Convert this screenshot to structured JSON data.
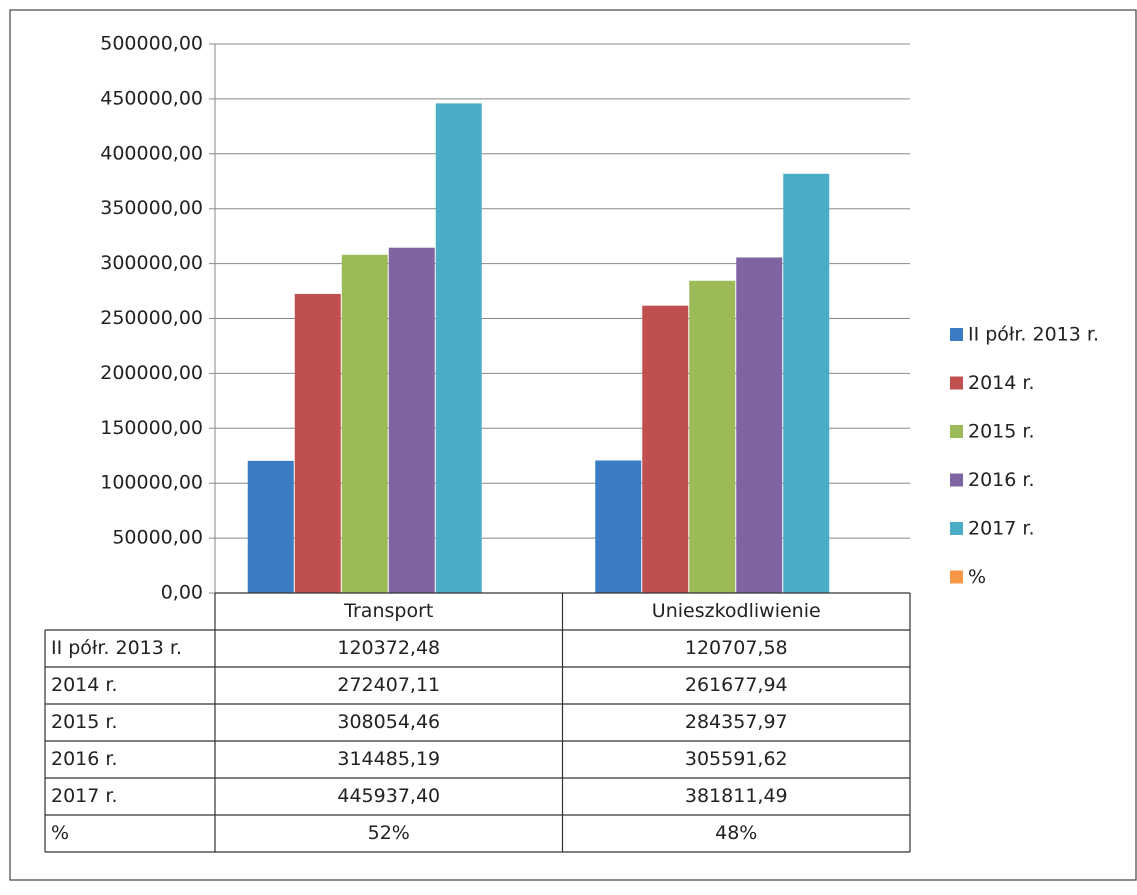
{
  "chart_data": {
    "type": "bar",
    "categories": [
      "Transport",
      "Unieszkodliwienie"
    ],
    "series": [
      {
        "name": "II półr. 2013 r.",
        "color": "#3b7dc4",
        "values": [
          120372.48,
          120707.58
        ],
        "value_labels": [
          "120372,48",
          "120707,58"
        ]
      },
      {
        "name": "2014 r.",
        "color": "#c0504d",
        "values": [
          272407.11,
          261677.94
        ],
        "value_labels": [
          "272407,11",
          "261677,94"
        ]
      },
      {
        "name": "2015 r.",
        "color": "#9bbb59",
        "values": [
          308054.46,
          284357.97
        ],
        "value_labels": [
          "308054,46",
          "284357,97"
        ]
      },
      {
        "name": "2016 r.",
        "color": "#8064a2",
        "values": [
          314485.19,
          305591.62
        ],
        "value_labels": [
          "314485,19",
          "305591,62"
        ]
      },
      {
        "name": "2017 r.",
        "color": "#4bacc6",
        "values": [
          445937.4,
          381811.49
        ],
        "value_labels": [
          "445937,40",
          "381811,49"
        ]
      },
      {
        "name": "%",
        "color": "#f79646",
        "values": [
          52,
          48
        ],
        "value_labels": [
          "52%",
          "48%"
        ]
      }
    ],
    "ylim": [
      0,
      500000
    ],
    "yticks": [
      {
        "value": 0,
        "label": "0,00"
      },
      {
        "value": 50000,
        "label": "50000,00"
      },
      {
        "value": 100000,
        "label": "100000,00"
      },
      {
        "value": 150000,
        "label": "150000,00"
      },
      {
        "value": 200000,
        "label": "200000,00"
      },
      {
        "value": 250000,
        "label": "250000,00"
      },
      {
        "value": 300000,
        "label": "300000,00"
      },
      {
        "value": 350000,
        "label": "350000,00"
      },
      {
        "value": 400000,
        "label": "400000,00"
      },
      {
        "value": 450000,
        "label": "450000,00"
      },
      {
        "value": 500000,
        "label": "500000,00"
      }
    ],
    "grid": true,
    "legend": "right"
  }
}
